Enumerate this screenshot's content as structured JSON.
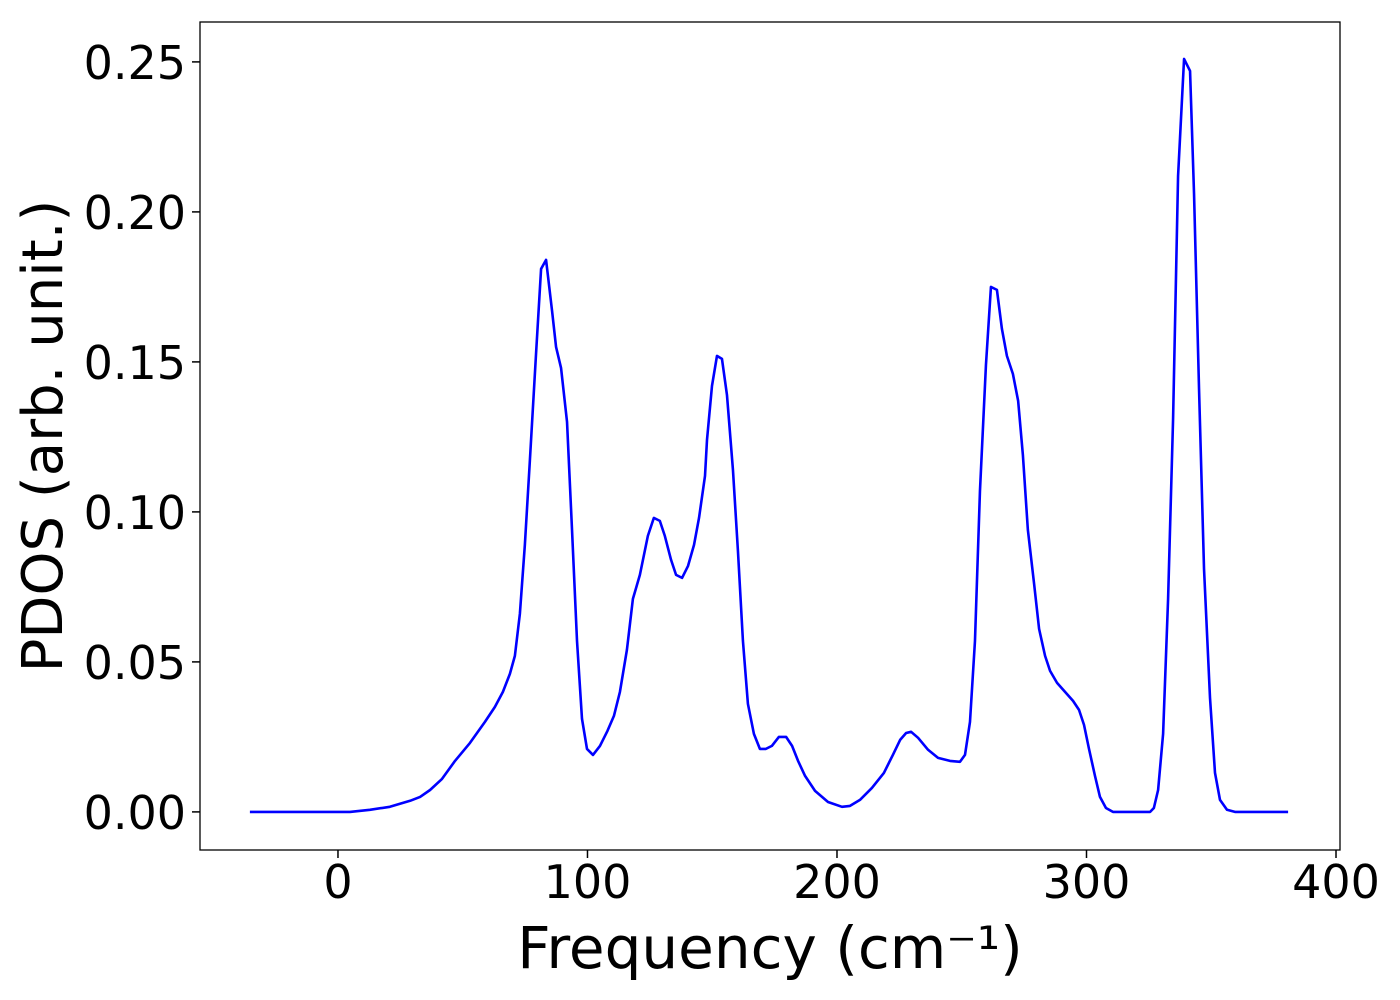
{
  "chart_data": {
    "type": "line",
    "xlabel": "Frequency (cm⁻¹)",
    "ylabel": "PDOS (arb. unit.)",
    "x": [
      -35.3,
      4.8,
      12.8,
      20.8,
      28.9,
      32.9,
      36.9,
      41.7,
      46.9,
      52.9,
      58.9,
      62.9,
      66.1,
      68.9,
      70.9,
      72.9,
      74.9,
      76.9,
      79.4,
      81.4,
      83.4,
      85.8,
      87.4,
      89.4,
      91.8,
      93.8,
      95.8,
      97.8,
      99.8,
      102.2,
      105,
      108,
      110.6,
      113,
      115.8,
      118.2,
      121,
      124.2,
      126.6,
      129,
      131,
      133.5,
      135.5,
      137.9,
      140.3,
      142.7,
      144.7,
      147.1,
      147.9,
      149.9,
      151.9,
      153.9,
      155.9,
      158.3,
      160.3,
      162.3,
      164.3,
      166.7,
      169.1,
      171.5,
      173.9,
      176.7,
      179.6,
      182,
      184.4,
      187.2,
      191.2,
      196.4,
      202,
      205.2,
      209.2,
      214,
      218.8,
      222.4,
      225.3,
      227.7,
      229.7,
      232.5,
      236.5,
      240.5,
      245.3,
      249.3,
      251.3,
      253.3,
      255.3,
      257.3,
      259.7,
      261.7,
      264.1,
      266.1,
      268.1,
      270.5,
      272.6,
      274.5,
      276.5,
      279,
      281,
      283.4,
      285.4,
      288.2,
      291.4,
      294.6,
      297,
      299,
      301,
      303.4,
      305.4,
      307.8,
      310.6,
      325.5,
      327,
      328.7,
      330.7,
      332.7,
      334.7,
      336.7,
      339.1,
      341.5,
      343.1,
      345.1,
      347.1,
      349.5,
      351.5,
      353.5,
      356.3,
      359.5,
      380.8
    ],
    "series": [
      {
        "color": "#0000ff",
        "values": [
          0,
          0,
          0.0007,
          0.0017,
          0.0037,
          0.005,
          0.0073,
          0.011,
          0.017,
          0.023,
          0.03,
          0.035,
          0.04,
          0.046,
          0.052,
          0.066,
          0.089,
          0.117,
          0.153,
          0.181,
          0.184,
          0.167,
          0.155,
          0.148,
          0.13,
          0.094,
          0.057,
          0.031,
          0.021,
          0.019,
          0.022,
          0.027,
          0.032,
          0.04,
          0.054,
          0.071,
          0.079,
          0.092,
          0.098,
          0.097,
          0.092,
          0.084,
          0.079,
          0.078,
          0.082,
          0.089,
          0.098,
          0.112,
          0.124,
          0.142,
          0.152,
          0.151,
          0.139,
          0.114,
          0.087,
          0.057,
          0.036,
          0.026,
          0.021,
          0.021,
          0.022,
          0.025,
          0.025,
          0.022,
          0.017,
          0.012,
          0.007,
          0.0033,
          0.0017,
          0.002,
          0.004,
          0.008,
          0.013,
          0.019,
          0.024,
          0.0263,
          0.0267,
          0.0247,
          0.0207,
          0.018,
          0.017,
          0.0167,
          0.019,
          0.03,
          0.057,
          0.107,
          0.149,
          0.175,
          0.174,
          0.161,
          0.152,
          0.146,
          0.137,
          0.119,
          0.094,
          0.076,
          0.061,
          0.052,
          0.047,
          0.043,
          0.04,
          0.037,
          0.034,
          0.029,
          0.021,
          0.012,
          0.005,
          0.0013,
          0,
          0,
          0.0013,
          0.0073,
          0.026,
          0.071,
          0.131,
          0.212,
          0.251,
          0.247,
          0.206,
          0.141,
          0.081,
          0.038,
          0.013,
          0.004,
          0.0007,
          0,
          0
        ]
      }
    ],
    "xlim": [
      -55.3,
      401.6
    ],
    "ylim": [
      -0.0127,
      0.2633
    ],
    "xticks": [
      0,
      100,
      200,
      300,
      400
    ],
    "yticks": [
      {
        "value": 0,
        "label": "0.00"
      },
      {
        "value": 0.05,
        "label": "0.05"
      },
      {
        "value": 0.1,
        "label": "0.10"
      },
      {
        "value": 0.15,
        "label": "0.15"
      },
      {
        "value": 0.2,
        "label": "0.20"
      },
      {
        "value": 0.25,
        "label": "0.25"
      }
    ]
  }
}
